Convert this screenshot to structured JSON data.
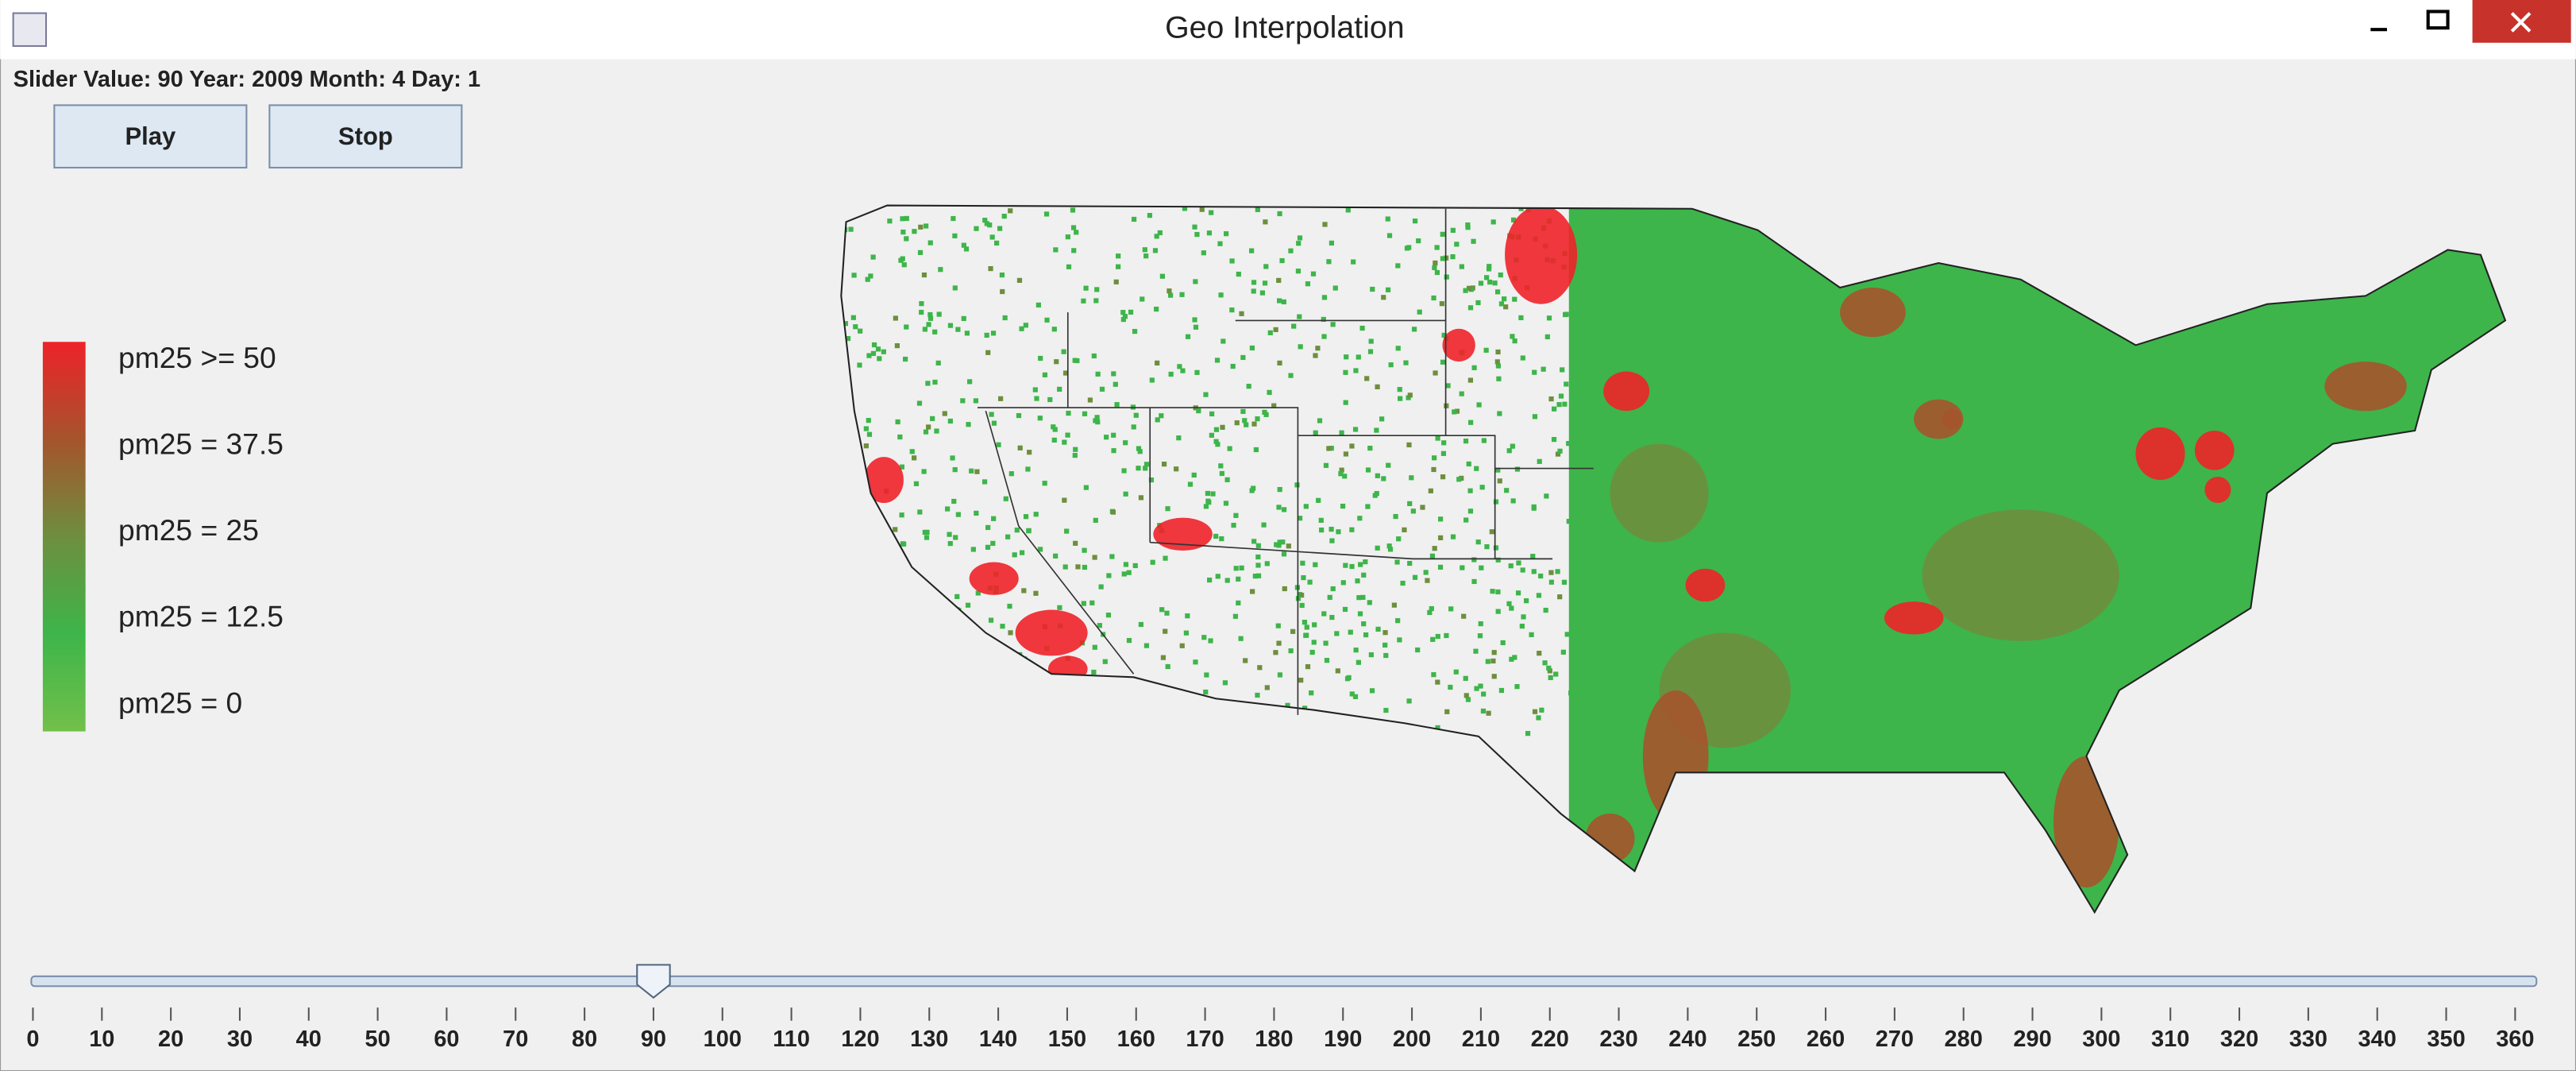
{
  "window": {
    "title": "Geo Interpolation"
  },
  "status": "Slider Value: 90 Year: 2009 Month: 4 Day: 1",
  "buttons": [
    "Play",
    "Stop"
  ],
  "legend": [
    {
      "label": "pm25 >= 50",
      "color": "#ee2229"
    },
    {
      "label": "pm25 = 37.5",
      "color": "#a5542c"
    },
    {
      "label": "pm25 = 25",
      "color": "#6e8e3e"
    },
    {
      "label": "pm25 = 12.5",
      "color": "#3db54a"
    },
    {
      "label": "pm25 = 0",
      "color": "#72c04a"
    }
  ],
  "slider": {
    "min": 0,
    "max": 360,
    "value": 90,
    "ticks": [
      0,
      10,
      20,
      30,
      40,
      50,
      60,
      70,
      80,
      90,
      100,
      110,
      120,
      130,
      140,
      150,
      160,
      170,
      180,
      190,
      200,
      210,
      220,
      230,
      240,
      250,
      260,
      270,
      280,
      290,
      300,
      310,
      320,
      330,
      340,
      350,
      360
    ]
  }
}
